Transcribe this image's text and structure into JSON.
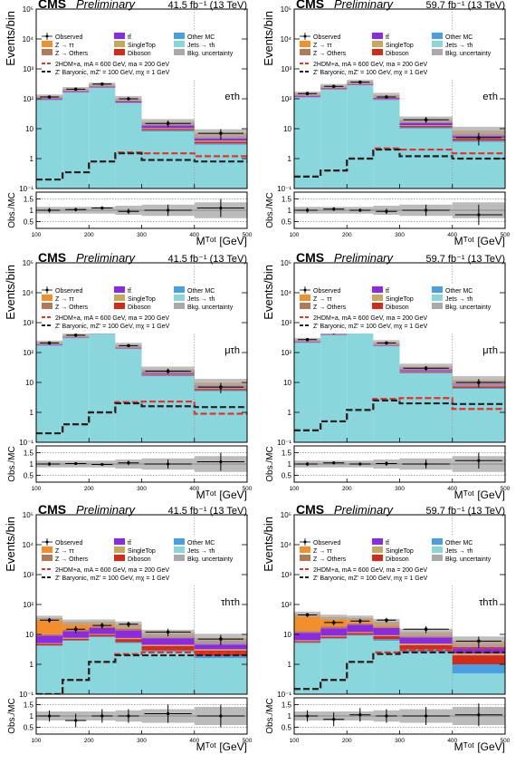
{
  "figure": {
    "x_edges": [
      100,
      150,
      200,
      250,
      300,
      400,
      500
    ],
    "y_range": [
      0.1,
      100000
    ],
    "ratio_range": [
      0.2,
      1.8
    ],
    "axis_labels": {
      "y": "Events/bin",
      "y_ratio": "Obs./MC"
    },
    "colors": {
      "ztautau": "#f28e2b",
      "zothers": "#b07a5a",
      "ttbar": "#8a2be2",
      "singletop": "#c8a85a",
      "diboson": "#d12b1a",
      "othermc": "#4a9fe0",
      "jetfake": "#8ad6dd",
      "unc": "#aaaaaa",
      "sig2hdm": "#e8302a",
      "sigbaryonic": "#222222"
    },
    "legend": [
      {
        "key": "observed",
        "label": "Observed",
        "kind": "marker"
      },
      {
        "key": "ttbar",
        "label": "tt̄",
        "kind": "box"
      },
      {
        "key": "othermc",
        "label": "Other MC",
        "kind": "box"
      },
      {
        "key": "ztautau",
        "label": "Z → ττ",
        "kind": "box"
      },
      {
        "key": "singletop",
        "label": "SingleTop",
        "kind": "box"
      },
      {
        "key": "jetfake",
        "label": "Jets → τh",
        "kind": "box"
      },
      {
        "key": "zothers",
        "label": "Z → Others",
        "kind": "box"
      },
      {
        "key": "diboson",
        "label": "Diboson",
        "kind": "box"
      },
      {
        "key": "unc",
        "label": "Bkg. uncertainty",
        "kind": "box"
      }
    ],
    "signal_legend": [
      {
        "key": "sig2hdm",
        "label": "2HDM+a, mA = 600 GeV, ma = 200 GeV"
      },
      {
        "key": "sigbaryonic",
        "label": "Z' Baryonic, mZ' = 100 GeV, mχ = 1 GeV"
      }
    ]
  },
  "chart_data": [
    {
      "type": "bar",
      "id": "etau-2017",
      "cms": "CMS",
      "prelim": "Preliminary",
      "lumi": "41.5 fb⁻¹ (13 TeV)",
      "channel": "eτh",
      "ylabel": "Events/bin",
      "ratio_label": "Obs./MC",
      "xlabel": "Mᵀᵒᵗ [GeV]",
      "x_ticks": [
        "100",
        "200",
        "300",
        "400",
        "500"
      ],
      "ylog": true,
      "stack": {
        "jetfake": [
          90,
          160,
          230,
          70,
          8,
          2.8
        ],
        "othermc": [
          2,
          3,
          4,
          2,
          0.8,
          0.3
        ],
        "diboson": [
          1.5,
          2.5,
          3.5,
          2,
          1,
          0.5
        ],
        "singletop": [
          1.5,
          2.5,
          3,
          1.5,
          0.6,
          0.3
        ],
        "ttbar": [
          8,
          12,
          15,
          9,
          3,
          1.2
        ],
        "zothers": [
          3,
          5,
          6,
          3,
          0.8,
          0.4
        ],
        "ztautau": [
          15,
          30,
          40,
          15,
          2.5,
          1.5
        ]
      },
      "observed": [
        115,
        210,
        310,
        100,
        15,
        7
      ],
      "unc_rel": [
        0.15,
        0.15,
        0.15,
        0.2,
        0.25,
        0.35
      ],
      "sig2hdm": [
        0.2,
        0.35,
        0.8,
        1.6,
        1.5,
        1.2
      ],
      "sigbaryonic": [
        0.2,
        0.35,
        0.8,
        1.5,
        0.9,
        0.8
      ],
      "ratio": [
        1.0,
        1.03,
        1.1,
        0.95,
        1.0,
        1.1
      ],
      "ratio_err": [
        0.1,
        0.08,
        0.07,
        0.12,
        0.25,
        0.4
      ]
    },
    {
      "type": "bar",
      "id": "etau-2018",
      "cms": "CMS",
      "prelim": "Preliminary",
      "lumi": "59.7 fb⁻¹ (13 TeV)",
      "channel": "eτh",
      "ylabel": "Events/bin",
      "ratio_label": "Obs./MC",
      "xlabel": "Mᵀᵒᵗ [GeV]",
      "x_ticks": [
        "100",
        "200",
        "300",
        "400",
        "500"
      ],
      "ylog": true,
      "stack": {
        "jetfake": [
          110,
          200,
          280,
          90,
          10,
          3.5
        ],
        "othermc": [
          2.5,
          4,
          5,
          2.5,
          1,
          0.4
        ],
        "diboson": [
          2,
          3,
          4,
          2.5,
          1.2,
          0.6
        ],
        "singletop": [
          2,
          3,
          3.5,
          2,
          0.7,
          0.3
        ],
        "ttbar": [
          10,
          15,
          20,
          11,
          3.5,
          1.4
        ],
        "zothers": [
          4,
          6,
          8,
          4,
          1,
          0.5
        ],
        "ztautau": [
          20,
          40,
          55,
          20,
          3,
          1.8
        ]
      },
      "observed": [
        150,
        260,
        360,
        115,
        20,
        5
      ],
      "unc_rel": [
        0.15,
        0.15,
        0.15,
        0.2,
        0.25,
        0.35
      ],
      "sig2hdm": [
        0.25,
        0.4,
        1.0,
        2.2,
        2.0,
        1.5
      ],
      "sigbaryonic": [
        0.25,
        0.4,
        1.0,
        2.0,
        1.2,
        1.0
      ],
      "ratio": [
        1.0,
        1.05,
        1.0,
        0.95,
        1.0,
        0.8
      ],
      "ratio_err": [
        0.1,
        0.08,
        0.07,
        0.12,
        0.25,
        0.45
      ]
    },
    {
      "type": "bar",
      "id": "mutau-2017",
      "cms": "CMS",
      "prelim": "Preliminary",
      "lumi": "41.5 fb⁻¹ (13 TeV)",
      "channel": "μτh",
      "ylabel": "Events/bin",
      "ratio_label": "Obs./MC",
      "xlabel": "Mᵀᵒᵗ [GeV]",
      "x_ticks": [
        "100",
        "200",
        "300",
        "400",
        "500"
      ],
      "ylog": true,
      "stack": {
        "jetfake": [
          170,
          300,
          420,
          130,
          16,
          5
        ],
        "othermc": [
          3,
          5,
          7,
          3,
          1,
          0.4
        ],
        "diboson": [
          2,
          3.5,
          5,
          3,
          1.2,
          0.6
        ],
        "singletop": [
          2,
          3,
          4,
          2,
          0.8,
          0.3
        ],
        "ttbar": [
          12,
          18,
          25,
          14,
          4,
          1.5
        ],
        "zothers": [
          4,
          6,
          8,
          4,
          1,
          0.4
        ],
        "ztautau": [
          25,
          40,
          60,
          20,
          3,
          1.5
        ]
      },
      "observed": [
        210,
        380,
        560,
        170,
        24,
        7
      ],
      "unc_rel": [
        0.15,
        0.15,
        0.15,
        0.2,
        0.25,
        0.35
      ],
      "sig2hdm": [
        0.2,
        0.4,
        1.0,
        2.2,
        2.3,
        0.9
      ],
      "sigbaryonic": [
        0.2,
        0.4,
        1.0,
        2.0,
        1.6,
        1.5
      ],
      "ratio": [
        1.0,
        1.02,
        0.98,
        1.05,
        1.0,
        1.1
      ],
      "ratio_err": [
        0.08,
        0.06,
        0.05,
        0.1,
        0.2,
        0.4
      ]
    },
    {
      "type": "bar",
      "id": "mutau-2018",
      "cms": "CMS",
      "prelim": "Preliminary",
      "lumi": "59.7 fb⁻¹ (13 TeV)",
      "channel": "μτh",
      "ylabel": "Events/bin",
      "ratio_label": "Obs./MC",
      "xlabel": "Mᵀᵒᵗ [GeV]",
      "x_ticks": [
        "100",
        "200",
        "300",
        "400",
        "500"
      ],
      "ylog": true,
      "stack": {
        "jetfake": [
          210,
          380,
          520,
          160,
          20,
          6
        ],
        "othermc": [
          4,
          6,
          8,
          4,
          1.2,
          0.5
        ],
        "diboson": [
          2.5,
          4,
          6,
          3.5,
          1.4,
          0.7
        ],
        "singletop": [
          2.5,
          4,
          5,
          2.5,
          1,
          0.4
        ],
        "ttbar": [
          15,
          22,
          30,
          17,
          5,
          1.8
        ],
        "zothers": [
          5,
          8,
          10,
          5,
          1.2,
          0.5
        ],
        "ztautau": [
          30,
          50,
          75,
          25,
          4,
          2
        ]
      },
      "observed": [
        270,
        470,
        650,
        210,
        30,
        10
      ],
      "unc_rel": [
        0.15,
        0.15,
        0.15,
        0.2,
        0.25,
        0.35
      ],
      "sig2hdm": [
        0.25,
        0.5,
        1.2,
        2.8,
        3.0,
        1.3
      ],
      "sigbaryonic": [
        0.25,
        0.5,
        1.2,
        2.5,
        2.0,
        1.9
      ],
      "ratio": [
        1.0,
        1.05,
        1.0,
        1.02,
        1.0,
        1.15
      ],
      "ratio_err": [
        0.08,
        0.06,
        0.05,
        0.1,
        0.2,
        0.35
      ]
    },
    {
      "type": "bar",
      "id": "tautau-2017",
      "cms": "CMS",
      "prelim": "Preliminary",
      "lumi": "41.5 fb⁻¹ (13 TeV)",
      "channel": "τhτh",
      "ylabel": "Events/bin",
      "ratio_label": "Obs./MC",
      "xlabel": "Mᵀᵒᵗ [GeV]",
      "x_ticks": [
        "100",
        "200",
        "300",
        "400",
        "500"
      ],
      "ylog": true,
      "stack": {
        "jetfake": [
          4,
          6,
          8,
          5,
          2.5,
          1.5
        ],
        "othermc": [
          0.2,
          0.3,
          0.4,
          0.4,
          0.3,
          0.3
        ],
        "diboson": [
          0.5,
          0.8,
          1.2,
          1.5,
          1.2,
          1.0
        ],
        "singletop": [
          0.3,
          0.5,
          0.6,
          0.6,
          0.4,
          0.3
        ],
        "ttbar": [
          4,
          5,
          6,
          6,
          3,
          2
        ],
        "zothers": [
          1,
          1.5,
          2,
          2,
          1.5,
          1
        ],
        "ztautau": [
          25,
          12,
          8,
          6,
          2,
          1.3
        ]
      },
      "observed": [
        30,
        15,
        20,
        22,
        12,
        7
      ],
      "unc_rel": [
        0.2,
        0.2,
        0.2,
        0.25,
        0.3,
        0.4
      ],
      "sig2hdm": [
        0.1,
        0.3,
        1.2,
        2.2,
        2.5,
        2.5
      ],
      "sigbaryonic": [
        0.1,
        0.3,
        1.2,
        2.0,
        2.0,
        2.0
      ],
      "ratio": [
        1.0,
        0.8,
        1.0,
        1.0,
        1.1,
        1.0
      ],
      "ratio_err": [
        0.25,
        0.3,
        0.3,
        0.3,
        0.4,
        0.5
      ]
    },
    {
      "type": "bar",
      "id": "tautau-2018",
      "cms": "CMS",
      "prelim": "Preliminary",
      "lumi": "59.7 fb⁻¹ (13 TeV)",
      "channel": "τhτh",
      "ylabel": "Events/bin",
      "ratio_label": "Obs./MC",
      "xlabel": "Mᵀᵒᵗ [GeV]",
      "x_ticks": [
        "100",
        "200",
        "300",
        "400",
        "500"
      ],
      "ylog": true,
      "stack": {
        "jetfake": [
          5,
          7,
          9,
          6,
          2.5,
          0.4
        ],
        "othermc": [
          0.3,
          0.4,
          0.6,
          0.8,
          0.6,
          0.5
        ],
        "diboson": [
          0.6,
          1.0,
          1.5,
          1.8,
          1.2,
          1.0
        ],
        "singletop": [
          0.4,
          0.6,
          0.8,
          0.7,
          0.5,
          0.3
        ],
        "ttbar": [
          5,
          7,
          9,
          7,
          3,
          1.5
        ],
        "zothers": [
          1.5,
          2,
          2.5,
          2,
          1.5,
          0.8
        ],
        "ztautau": [
          35,
          20,
          12,
          8,
          2.5,
          1.5
        ]
      },
      "observed": [
        45,
        25,
        28,
        30,
        15,
        6
      ],
      "unc_rel": [
        0.2,
        0.2,
        0.2,
        0.25,
        0.3,
        0.4
      ],
      "sig2hdm": [
        0.15,
        0.3,
        1.2,
        2.5,
        3.0,
        3.5
      ],
      "sigbaryonic": [
        0.15,
        0.3,
        1.2,
        2.2,
        2.5,
        2.5
      ],
      "ratio": [
        1.0,
        0.85,
        1.05,
        1.0,
        1.0,
        1.05
      ],
      "ratio_err": [
        0.25,
        0.3,
        0.3,
        0.3,
        0.4,
        0.5
      ]
    }
  ]
}
